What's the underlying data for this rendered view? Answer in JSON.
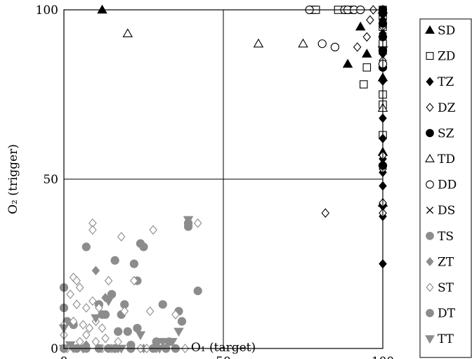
{
  "chart_data": {
    "type": "scatter",
    "title": "",
    "xlabel": "O₁ (target)",
    "ylabel": "O₂ (trigger)",
    "xlim": [
      0,
      100
    ],
    "ylim": [
      0,
      100
    ],
    "xticks": [
      "0",
      "50",
      "100"
    ],
    "yticks": [
      "0",
      "50",
      "100"
    ],
    "grid": "lines at 50",
    "legend_position": "right",
    "series": [
      {
        "name": "SD",
        "marker": "triangle",
        "fill": "filled",
        "color": "#000000",
        "points": [
          [
            12,
            100
          ],
          [
            89,
            84
          ],
          [
            93,
            95
          ],
          [
            95,
            87
          ],
          [
            100,
            100
          ],
          [
            100,
            90
          ],
          [
            100,
            80
          ],
          [
            100,
            58
          ],
          [
            100,
            43
          ]
        ]
      },
      {
        "name": "ZD",
        "marker": "square",
        "fill": "open",
        "color": "#000000",
        "points": [
          [
            78,
            100
          ],
          [
            79,
            100
          ],
          [
            86,
            100
          ],
          [
            90,
            100
          ],
          [
            94,
            78
          ],
          [
            95,
            83
          ],
          [
            100,
            100
          ],
          [
            100,
            98
          ],
          [
            100,
            95
          ],
          [
            100,
            75
          ],
          [
            100,
            72
          ],
          [
            100,
            63
          ],
          [
            100,
            90
          ],
          [
            100,
            88
          ]
        ]
      },
      {
        "name": "TZ",
        "marker": "diamond",
        "fill": "filled",
        "color": "#000000",
        "points": [
          [
            100,
            100
          ],
          [
            100,
            97
          ],
          [
            100,
            93
          ],
          [
            100,
            87
          ],
          [
            100,
            79
          ],
          [
            100,
            68
          ],
          [
            100,
            62
          ],
          [
            100,
            56
          ],
          [
            100,
            52
          ],
          [
            100,
            48
          ],
          [
            100,
            42
          ],
          [
            100,
            39
          ],
          [
            100,
            25
          ]
        ]
      },
      {
        "name": "DZ",
        "marker": "diamond",
        "fill": "open",
        "color": "#000000",
        "points": [
          [
            82,
            40
          ],
          [
            92,
            89
          ],
          [
            95,
            92
          ],
          [
            96,
            97
          ],
          [
            97,
            100
          ],
          [
            100,
            100
          ],
          [
            100,
            95
          ],
          [
            100,
            85
          ],
          [
            100,
            53
          ],
          [
            100,
            43
          ],
          [
            100,
            40
          ],
          [
            100,
            57
          ]
        ]
      },
      {
        "name": "SZ",
        "marker": "circle",
        "fill": "filled",
        "color": "#000000",
        "points": [
          [
            100,
            100
          ],
          [
            100,
            99
          ],
          [
            100,
            96
          ],
          [
            100,
            92
          ],
          [
            100,
            88
          ],
          [
            100,
            83
          ],
          [
            100,
            54
          ]
        ]
      },
      {
        "name": "TD",
        "marker": "triangle",
        "fill": "open",
        "color": "#000000",
        "points": [
          [
            20,
            93
          ],
          [
            61,
            90
          ],
          [
            75,
            90
          ],
          [
            100,
            71
          ]
        ]
      },
      {
        "name": "DD",
        "marker": "circle",
        "fill": "open",
        "color": "#000000",
        "points": [
          [
            77,
            100
          ],
          [
            81,
            90
          ],
          [
            85,
            89
          ],
          [
            88,
            100
          ],
          [
            89,
            100
          ],
          [
            91,
            100
          ],
          [
            93,
            100
          ],
          [
            100,
            84
          ]
        ]
      },
      {
        "name": "DS",
        "marker": "cross",
        "fill": "open",
        "color": "#000000",
        "points": [
          [
            100,
            98
          ]
        ]
      },
      {
        "name": "TS",
        "marker": "circle",
        "fill": "filled",
        "color": "#8c8c8c",
        "points": [
          [
            0,
            18
          ],
          [
            0,
            12
          ],
          [
            1,
            8
          ],
          [
            3,
            7
          ],
          [
            7,
            30
          ],
          [
            11,
            13
          ],
          [
            12,
            10
          ],
          [
            15,
            16
          ],
          [
            16,
            26
          ],
          [
            17,
            5
          ],
          [
            18,
            10
          ],
          [
            19,
            13
          ],
          [
            20,
            5
          ],
          [
            21,
            1
          ],
          [
            22,
            25
          ],
          [
            23,
            6
          ],
          [
            23,
            20
          ],
          [
            24,
            31
          ],
          [
            25,
            30
          ],
          [
            29,
            2
          ],
          [
            31,
            13
          ],
          [
            33,
            2
          ],
          [
            36,
            11
          ],
          [
            37,
            8
          ],
          [
            39,
            36
          ],
          [
            42,
            17
          ]
        ]
      },
      {
        "name": "ZT",
        "marker": "diamond",
        "fill": "filled",
        "color": "#8c8c8c",
        "points": [
          [
            0,
            0
          ],
          [
            3,
            0
          ],
          [
            7,
            1
          ],
          [
            10,
            23
          ],
          [
            13,
            15
          ],
          [
            17,
            0
          ],
          [
            21,
            0
          ],
          [
            25,
            0
          ],
          [
            29,
            0
          ],
          [
            32,
            0
          ]
        ]
      },
      {
        "name": "ST",
        "marker": "diamond",
        "fill": "open",
        "color": "#8c8c8c",
        "points": [
          [
            0,
            7
          ],
          [
            0,
            4
          ],
          [
            1,
            0
          ],
          [
            2,
            16
          ],
          [
            3,
            21
          ],
          [
            3,
            8
          ],
          [
            4,
            20
          ],
          [
            4,
            13
          ],
          [
            5,
            18
          ],
          [
            5,
            2
          ],
          [
            6,
            7
          ],
          [
            6,
            0
          ],
          [
            7,
            4
          ],
          [
            7,
            12
          ],
          [
            8,
            6
          ],
          [
            9,
            37
          ],
          [
            9,
            14
          ],
          [
            9,
            35
          ],
          [
            10,
            8
          ],
          [
            10,
            2
          ],
          [
            11,
            12
          ],
          [
            12,
            6
          ],
          [
            12,
            0
          ],
          [
            13,
            3
          ],
          [
            14,
            20
          ],
          [
            15,
            0
          ],
          [
            16,
            0
          ],
          [
            17,
            2
          ],
          [
            18,
            33
          ],
          [
            19,
            11
          ],
          [
            22,
            20
          ],
          [
            24,
            0
          ],
          [
            26,
            0
          ],
          [
            27,
            11
          ],
          [
            28,
            35
          ],
          [
            35,
            10
          ],
          [
            38,
            0
          ],
          [
            42,
            37
          ]
        ]
      },
      {
        "name": "DT",
        "marker": "circle",
        "fill": "filled",
        "color": "#8c8c8c",
        "points": [
          [
            0,
            0
          ],
          [
            4,
            0
          ],
          [
            7,
            0
          ],
          [
            11,
            0
          ],
          [
            13,
            10
          ],
          [
            14,
            0
          ],
          [
            16,
            0
          ],
          [
            21,
            0
          ],
          [
            28,
            0
          ],
          [
            32,
            0
          ],
          [
            35,
            0
          ],
          [
            39,
            37
          ]
        ]
      },
      {
        "name": "TT",
        "marker": "triangle-down",
        "fill": "filled",
        "color": "#8c8c8c",
        "points": [
          [
            0,
            6
          ],
          [
            0,
            0
          ],
          [
            2,
            1
          ],
          [
            6,
            0
          ],
          [
            10,
            9
          ],
          [
            14,
            14
          ],
          [
            18,
            0
          ],
          [
            24,
            4
          ],
          [
            30,
            0
          ],
          [
            31,
            2
          ],
          [
            34,
            2
          ],
          [
            36,
            5
          ],
          [
            39,
            38
          ]
        ]
      }
    ]
  }
}
